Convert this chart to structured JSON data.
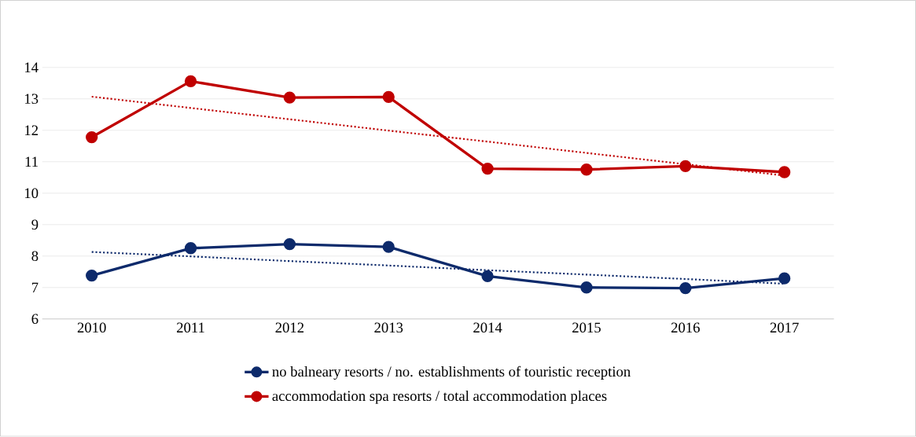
{
  "chart_data": {
    "type": "line",
    "categories": [
      "2010",
      "2011",
      "2012",
      "2013",
      "2014",
      "2015",
      "2016",
      "2017"
    ],
    "series": [
      {
        "name": "no balneary resorts / no. establishments of touristic reception",
        "color": "#0d2a6b",
        "marker": "circle",
        "line_style": "solid",
        "values": [
          7.38,
          8.25,
          8.38,
          8.29,
          7.36,
          7.0,
          6.98,
          7.29
        ]
      },
      {
        "name": "accommodation spa resorts / total accommodation places",
        "color": "#c00000",
        "marker": "circle",
        "line_style": "solid",
        "values": [
          11.78,
          13.56,
          13.04,
          13.06,
          10.78,
          10.75,
          10.86,
          10.67
        ]
      },
      {
        "color": "#0d2a6b",
        "marker": "none",
        "line_style": "dotted",
        "values": [
          8.13,
          7.99,
          7.84,
          7.7,
          7.55,
          7.41,
          7.27,
          7.12
        ]
      },
      {
        "color": "#c00000",
        "marker": "none",
        "line_style": "dotted",
        "values": [
          13.07,
          12.71,
          12.35,
          11.99,
          11.64,
          11.28,
          10.92,
          10.56
        ]
      }
    ],
    "ylim": [
      6,
      14
    ],
    "yticks": [
      6,
      7,
      8,
      9,
      10,
      11,
      12,
      13,
      14
    ],
    "grid": "y",
    "legend": "bottom"
  }
}
